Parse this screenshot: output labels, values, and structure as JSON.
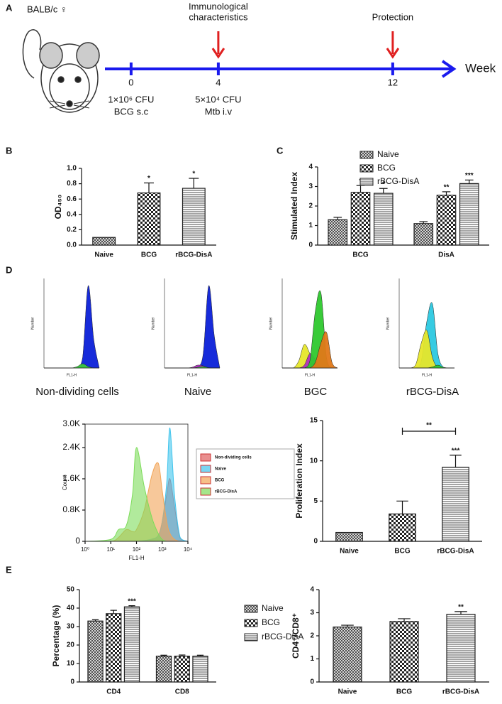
{
  "timeline": {
    "panel_label": "A",
    "strain": "BALB/c ♀",
    "axis_label": "Week",
    "xlim": [
      -1.2,
      14.8
    ],
    "xticks": [
      0,
      4,
      12
    ],
    "notes": [
      {
        "at": 0,
        "lines": [
          "1×10⁶ CFU",
          "BCG s.c"
        ]
      },
      {
        "at": 4,
        "lines": [
          "5×10⁴ CFU",
          "Mtb i.v"
        ]
      }
    ],
    "events": [
      {
        "at": 4,
        "lines": [
          "Immunological",
          "characteristics"
        ]
      },
      {
        "at": 12,
        "lines": [
          "Protection"
        ]
      }
    ]
  },
  "chart_data": [
    {
      "type": "bar",
      "panel_label": "B",
      "categories": [
        "Naive",
        "BCG",
        "rBCG-DisA"
      ],
      "values": [
        0.1,
        0.68,
        0.74
      ],
      "errors": [
        0,
        0.13,
        0.13
      ],
      "significance": [
        null,
        "*",
        "*"
      ],
      "patterns": [
        "crosshatch",
        "checker",
        "stripes"
      ],
      "ylabel": "OD₄₅₀",
      "ylim": [
        0,
        1
      ],
      "yticks": [
        {
          "value": 0,
          "label": "0.0"
        },
        0.2,
        0.4,
        0.6,
        0.8,
        {
          "value": 1,
          "label": "1.0"
        }
      ]
    },
    {
      "type": "bar",
      "panel_label": "C",
      "categories": [
        "BCG",
        "DisA"
      ],
      "ylabel": "Stimulated Index",
      "ylim": [
        0,
        4
      ],
      "yticks": [
        0,
        1,
        2,
        3,
        4
      ],
      "legend": "top",
      "series": [
        {
          "name": "Naive",
          "pattern": "crosshatch",
          "values": [
            1.3,
            1.1
          ],
          "errors": [
            0.12,
            0.1
          ],
          "significance": [
            null,
            null
          ]
        },
        {
          "name": "BCG",
          "pattern": "checker",
          "values": [
            2.7,
            2.55
          ],
          "errors": [
            0.35,
            0.18
          ],
          "significance": [
            "*",
            "**"
          ]
        },
        {
          "name": "rBCG-DisA",
          "pattern": "stripes",
          "values": [
            2.65,
            3.15
          ],
          "errors": [
            0.25,
            0.18
          ],
          "significance": [
            "*",
            "***"
          ]
        }
      ]
    },
    {
      "type": "flow",
      "panel_label": "D",
      "caption": "Non-dividing cells",
      "xlabel": "FL1-H",
      "ylabel": "Number",
      "xlim": [
        0,
        250
      ],
      "ylim": [
        0,
        1250
      ],
      "x": [
        0,
        25,
        50,
        75,
        100,
        125,
        150,
        175,
        200,
        225,
        250
      ],
      "series": [
        {
          "color": "#0b20d8",
          "values": [
            0,
            0,
            0,
            0,
            0,
            0,
            5,
            150,
            1150,
            400,
            0
          ]
        },
        {
          "color": "#3cc83c",
          "values": [
            0,
            0,
            0,
            0,
            0,
            0,
            20,
            60,
            20,
            0,
            0
          ]
        }
      ]
    },
    {
      "type": "flow",
      "caption": "Naive",
      "xlabel": "FL1-H",
      "ylabel": "Number",
      "xlim": [
        0,
        250
      ],
      "ylim": [
        0,
        2500
      ],
      "x": [
        0,
        25,
        50,
        75,
        100,
        125,
        150,
        175,
        200,
        225,
        250
      ],
      "series": [
        {
          "color": "#0b20d8",
          "values": [
            0,
            0,
            0,
            0,
            0,
            0,
            30,
            400,
            2300,
            900,
            0
          ]
        },
        {
          "color": "#b030c0",
          "values": [
            0,
            0,
            0,
            0,
            0,
            20,
            80,
            60,
            0,
            0,
            0
          ]
        },
        {
          "color": "#3cc83c",
          "values": [
            0,
            0,
            0,
            0,
            0,
            0,
            20,
            40,
            10,
            0,
            0
          ]
        }
      ]
    },
    {
      "type": "flow",
      "caption": "BGC",
      "xlabel": "FL1-H",
      "ylabel": "Number",
      "xlim": [
        0,
        250
      ],
      "ylim": [
        0,
        1250
      ],
      "x": [
        0,
        25,
        50,
        75,
        100,
        125,
        150,
        175,
        200,
        225,
        250
      ],
      "series": [
        {
          "color": "#e6e62a",
          "values": [
            0,
            0,
            0,
            100,
            330,
            200,
            20,
            0,
            0,
            0,
            0
          ]
        },
        {
          "color": "#b030c0",
          "values": [
            0,
            0,
            0,
            0,
            40,
            200,
            120,
            10,
            0,
            0,
            0
          ]
        },
        {
          "color": "#2ec82e",
          "values": [
            0,
            0,
            0,
            0,
            0,
            100,
            800,
            1050,
            150,
            0,
            0
          ]
        },
        {
          "color": "#e07818",
          "values": [
            0,
            0,
            0,
            0,
            0,
            0,
            80,
            350,
            500,
            80,
            0
          ]
        }
      ]
    },
    {
      "type": "flow",
      "caption": "rBCG-DisA",
      "xlabel": "FL1-H",
      "ylabel": "Number",
      "xlim": [
        0,
        250
      ],
      "ylim": [
        0,
        2500
      ],
      "x": [
        0,
        25,
        50,
        75,
        100,
        125,
        150,
        175,
        200,
        225,
        250
      ],
      "series": [
        {
          "color": "#2cc8e0",
          "values": [
            0,
            0,
            0,
            0,
            200,
            1300,
            1800,
            400,
            20,
            0,
            0
          ]
        },
        {
          "color": "#e6e62a",
          "values": [
            0,
            0,
            0,
            100,
            700,
            1050,
            300,
            0,
            0,
            0,
            0
          ]
        },
        {
          "color": "#2ec82e",
          "values": [
            0,
            0,
            0,
            0,
            0,
            0,
            30,
            80,
            20,
            0,
            0
          ]
        }
      ]
    },
    {
      "type": "flow",
      "log_x": true,
      "xlabel": "FL1-H",
      "ylabel": "Count",
      "xlim": [
        1,
        10000
      ],
      "ylim": [
        0,
        3000
      ],
      "xticks": [
        {
          "value": 1,
          "label": "10⁰"
        },
        {
          "value": 10,
          "label": "10¹"
        },
        {
          "value": 100,
          "label": "10²"
        },
        {
          "value": 1000,
          "label": "10³"
        },
        {
          "value": 10000,
          "label": "10⁴"
        }
      ],
      "yticks": [
        0,
        {
          "value": 800,
          "label": "0.8K"
        },
        {
          "value": 1600,
          "label": "1.6K"
        },
        {
          "value": 2400,
          "label": "2.4K"
        },
        {
          "value": 3000,
          "label": "3.0K"
        }
      ],
      "x": [
        1,
        10,
        20,
        40,
        70,
        100,
        200,
        400,
        700,
        1000,
        1500,
        2000,
        3000,
        5000,
        10000
      ],
      "series": [
        {
          "name": "Non-dividing cells",
          "color": "#e06060",
          "values": [
            0,
            0,
            0,
            0,
            0,
            0,
            10,
            40,
            150,
            500,
            1200,
            1600,
            900,
            80,
            0
          ]
        },
        {
          "name": "Naive",
          "color": "#40c4ec",
          "values": [
            0,
            0,
            0,
            0,
            0,
            0,
            20,
            60,
            150,
            500,
            1500,
            2900,
            1200,
            100,
            0
          ]
        },
        {
          "name": "BCG",
          "color": "#f2a456",
          "values": [
            0,
            0,
            100,
            300,
            250,
            300,
            800,
            1700,
            2000,
            1300,
            500,
            200,
            50,
            0,
            0
          ]
        },
        {
          "name": "rBCG-DisA",
          "color": "#7ddc5a",
          "values": [
            0,
            50,
            300,
            400,
            1200,
            2400,
            1400,
            600,
            200,
            50,
            0,
            0,
            0,
            0,
            0
          ]
        }
      ]
    },
    {
      "type": "bar",
      "categories": [
        "Naive",
        "BCG",
        "rBCG-DisA"
      ],
      "values": [
        1.1,
        3.4,
        9.2
      ],
      "errors": [
        0,
        1.6,
        1.5
      ],
      "significance": [
        null,
        null,
        "***"
      ],
      "patterns": [
        "crosshatch",
        "checker",
        "stripes"
      ],
      "ylabel": "Proliferation Index",
      "ylim": [
        0,
        15
      ],
      "yticks": [
        0,
        5,
        10,
        15
      ],
      "bracket": {
        "from": 1,
        "to": 2,
        "label": "**"
      }
    },
    {
      "type": "bar",
      "panel_label": "E",
      "categories": [
        "CD4",
        "CD8"
      ],
      "ylabel": "Percentage (%)",
      "ylim": [
        0,
        50
      ],
      "yticks": [
        0,
        10,
        20,
        30,
        40,
        50
      ],
      "legend": "right",
      "series": [
        {
          "name": "Naive",
          "pattern": "crosshatch",
          "values": [
            33,
            14
          ],
          "errors": [
            0.7,
            0.5
          ],
          "significance": [
            null,
            null
          ]
        },
        {
          "name": "BCG",
          "pattern": "checker",
          "values": [
            37,
            14
          ],
          "errors": [
            1.8,
            0.6
          ],
          "significance": [
            null,
            null
          ]
        },
        {
          "name": "rBCG-DisA",
          "pattern": "stripes",
          "values": [
            40.7,
            14
          ],
          "errors": [
            0.6,
            0.5
          ],
          "significance": [
            "***",
            null
          ]
        }
      ]
    },
    {
      "type": "bar",
      "categories": [
        "Naive",
        "BCG",
        "rBCG-DisA"
      ],
      "values": [
        2.38,
        2.62,
        2.93
      ],
      "errors": [
        0.08,
        0.12,
        0.12
      ],
      "significance": [
        null,
        null,
        "**"
      ],
      "patterns": [
        "crosshatch",
        "checker",
        "stripes"
      ],
      "ylabel": "CD4⁺/CD8⁺",
      "ylim": [
        0,
        4
      ],
      "yticks": [
        0,
        1,
        2,
        3,
        4
      ]
    }
  ]
}
